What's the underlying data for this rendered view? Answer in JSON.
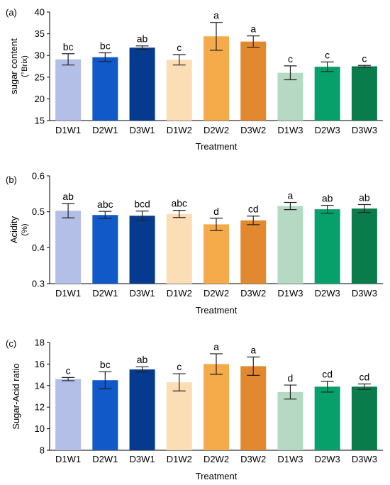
{
  "chart_data": [
    {
      "type": "bar",
      "panel_label": "(a)",
      "title": "",
      "xlabel": "Treatment",
      "ylabel_lines": [
        "sugar content",
        "(°Brix)"
      ],
      "ylim": [
        15,
        40
      ],
      "yticks": [
        15,
        20,
        25,
        30,
        35,
        40
      ],
      "ytick_labels": [
        "15",
        "20",
        "25",
        "30",
        "35",
        "40"
      ],
      "categories": [
        "D1W1",
        "D2W1",
        "D3W1",
        "D1W2",
        "D2W2",
        "D3W2",
        "D1W3",
        "D2W3",
        "D3W3"
      ],
      "values": [
        29.1,
        29.6,
        31.8,
        29.0,
        34.4,
        33.2,
        26.0,
        27.4,
        27.5
      ],
      "errors": [
        1.3,
        1.0,
        0.4,
        1.2,
        3.2,
        1.3,
        1.6,
        1.1,
        0.2
      ],
      "significance_letters": [
        "bc",
        "bc",
        "ab",
        "c",
        "a",
        "a",
        "c",
        "c",
        "c"
      ]
    },
    {
      "type": "bar",
      "panel_label": "(b)",
      "title": "",
      "xlabel": "Treatment",
      "ylabel_lines": [
        "Acidity",
        "(%)"
      ],
      "ylim": [
        0.3,
        0.6
      ],
      "yticks": [
        0.3,
        0.4,
        0.5,
        0.6
      ],
      "ytick_labels": [
        "0.3",
        "0.4",
        "0.5",
        "0.6"
      ],
      "categories": [
        "D1W1",
        "D2W1",
        "D3W1",
        "D1W2",
        "D2W2",
        "D3W2",
        "D1W3",
        "D2W3",
        "D3W3"
      ],
      "values": [
        0.503,
        0.491,
        0.489,
        0.494,
        0.465,
        0.476,
        0.516,
        0.507,
        0.509
      ],
      "errors": [
        0.02,
        0.01,
        0.013,
        0.01,
        0.017,
        0.012,
        0.01,
        0.011,
        0.011
      ],
      "significance_letters": [
        "ab",
        "abc",
        "bcd",
        "abc",
        "d",
        "cd",
        "a",
        "ab",
        "ab"
      ]
    },
    {
      "type": "bar",
      "panel_label": "(c)",
      "title": "",
      "xlabel": "Treatment",
      "ylabel_lines": [
        "Sugar-Acid ratio"
      ],
      "ylim": [
        8,
        18
      ],
      "yticks": [
        8,
        10,
        12,
        14,
        16,
        18
      ],
      "ytick_labels": [
        "8",
        "10",
        "12",
        "14",
        "16",
        "18"
      ],
      "categories": [
        "D1W1",
        "D2W1",
        "D3W1",
        "D1W2",
        "D2W2",
        "D3W2",
        "D1W3",
        "D2W3",
        "D3W3"
      ],
      "values": [
        14.6,
        14.5,
        15.5,
        14.3,
        16.0,
        15.8,
        13.4,
        13.9,
        13.9
      ],
      "errors": [
        0.15,
        0.8,
        0.25,
        0.8,
        0.95,
        0.85,
        0.65,
        0.5,
        0.25
      ],
      "significance_letters": [
        "c",
        "bc",
        "ab",
        "c",
        "a",
        "a",
        "d",
        "cd",
        "cd"
      ]
    }
  ],
  "bar_colors": [
    "#b4bfe8",
    "#1158c8",
    "#063a8e",
    "#fbddb6",
    "#f5ab4a",
    "#e2882e",
    "#b6d9c4",
    "#08a06a",
    "#0a7b4b"
  ]
}
